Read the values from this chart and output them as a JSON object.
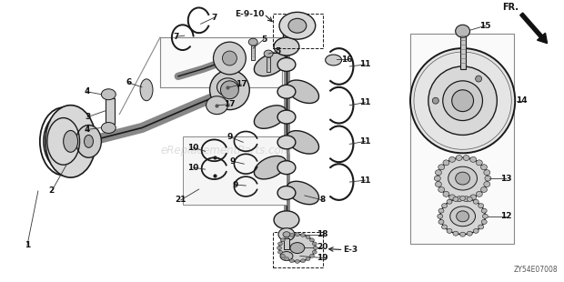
{
  "bg_color": "#ffffff",
  "fig_width": 6.2,
  "fig_height": 3.1,
  "dpi": 100,
  "watermark": "eReplacementParts.com",
  "diagram_code": "ZY54E07008",
  "line_color": "#1a1a1a",
  "part_fg": "#222222",
  "part_fill": "#e8e8e8",
  "part_fill2": "#d0d0d0",
  "shadow_fill": "#c0c0c0"
}
